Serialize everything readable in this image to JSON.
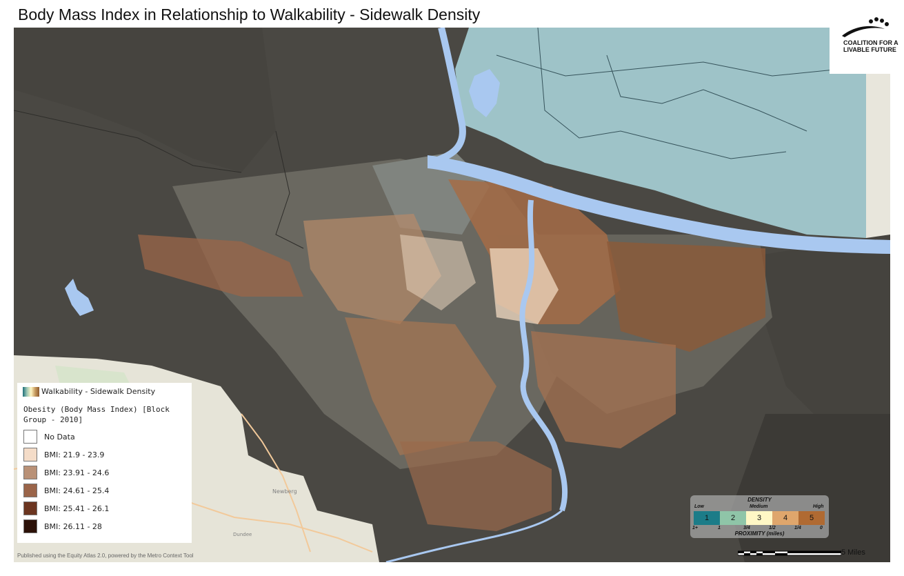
{
  "title": "Body Mass Index in Relationship to Walkability - Sidewalk Density",
  "logo": {
    "line1": "COALITION FOR A",
    "line2": "LIVABLE FUTURE"
  },
  "legend": {
    "ramp_label": "Walkability - Sidewalk Density",
    "heading": "Obesity (Body Mass Index) [Block Group - 2010]",
    "items": [
      {
        "label": "No Data",
        "color": "#ffffff"
      },
      {
        "label": "BMI: 21.9 - 23.9",
        "color": "#f4dcc8"
      },
      {
        "label": "BMI: 23.91 - 24.6",
        "color": "#b99177"
      },
      {
        "label": "BMI: 24.61 - 25.4",
        "color": "#9a6449"
      },
      {
        "label": "BMI: 25.41 - 26.1",
        "color": "#6b3520"
      },
      {
        "label": "BMI: 26.11 - 28",
        "color": "#2c1108"
      }
    ]
  },
  "density_legend": {
    "title": "DENSITY",
    "low": "Low",
    "medium": "Medium",
    "high": "High",
    "classes": [
      {
        "label": "1",
        "color": "#1c7c88"
      },
      {
        "label": "2",
        "color": "#8fc5a8"
      },
      {
        "label": "3",
        "color": "#fff7c5"
      },
      {
        "label": "4",
        "color": "#dfa66c"
      },
      {
        "label": "5",
        "color": "#b06a32"
      }
    ],
    "proximity_ticks": [
      "1+",
      "1",
      "3/4",
      "1/2",
      "1/4",
      "0"
    ],
    "proximity_label": "PROXIMITY (miles)"
  },
  "scale": {
    "label": "5 Miles"
  },
  "map_labels": {
    "town1": "Newberg",
    "town2": "Dundee"
  },
  "credit": "Published using the Equity Atlas 2.0, powered by the Metro Context Tool",
  "colors": {
    "water": "#a9c8f0",
    "washington_state": "#9ec3c8",
    "rural_dark": "#4a4843",
    "suburban_gray": "#6c6a62",
    "basemap_light": "#e8e6dc"
  }
}
